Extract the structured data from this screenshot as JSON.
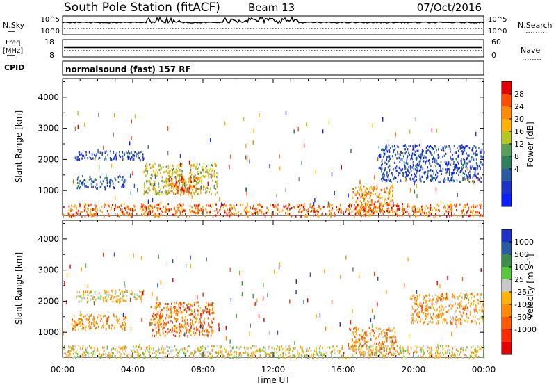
{
  "header": {
    "title": "South Pole Station (fitACF)",
    "beam": "Beam 13",
    "date": "07/Oct/2016"
  },
  "strips": {
    "nsky_label": "N.Sky",
    "nsearch_label": "N.Search",
    "freq_label_1": "Freq.",
    "freq_label_2": "[MHz]",
    "nave_label": "Nave",
    "cpid_label": "CPID",
    "cpid_value": "normalsound (fast) 157 RF",
    "noise_ticks_left": [
      "10^5",
      "10^0"
    ],
    "noise_ticks_right": [
      "10^5",
      "10^0"
    ],
    "freq_ticks": [
      "18",
      "8"
    ],
    "nave_ticks": [
      "60",
      "0"
    ]
  },
  "colorbars": {
    "power": {
      "label": "Power [dB]",
      "ticks": [
        "28",
        "24",
        "20",
        "16",
        "12",
        "8",
        "4"
      ],
      "colors": [
        "#e60000",
        "#ff4d00",
        "#ff8c00",
        "#ffb300",
        "#b4c820",
        "#5aa05a",
        "#2f7d5a",
        "#2a5aa0",
        "#1e32c8",
        "#0a1eff"
      ]
    },
    "velocity": {
      "label": "Velocity [m s⁻¹]",
      "ticks": [
        "1000",
        "500",
        "100",
        "25",
        "-25",
        "-100",
        "-500",
        "-1000"
      ],
      "colors": [
        "#1e32c8",
        "#2a5aa0",
        "#3c8c4a",
        "#5ac83c",
        "#c8c8c8",
        "#ffb400",
        "#ff8c00",
        "#ff5a00",
        "#ff2800",
        "#e60000"
      ]
    }
  },
  "chart_data": [
    {
      "type": "heatmap",
      "title": "Power",
      "xlabel": "",
      "ylabel": "Slant Range [km]",
      "x_ticks": [
        "00:00",
        "04:00",
        "08:00",
        "12:00",
        "16:00",
        "20:00",
        "00:00"
      ],
      "xlim": [
        0,
        24
      ],
      "ylim": [
        200,
        4600
      ],
      "y_ticks": [
        1000,
        2000,
        3000,
        4000
      ],
      "colorbar": {
        "label": "Power [dB]",
        "range": [
          0,
          32
        ]
      },
      "regions": [
        {
          "t": [
            0.7,
            4.6
          ],
          "r": [
            2000,
            2300
          ],
          "value": 6
        },
        {
          "t": [
            0.8,
            3.6
          ],
          "r": [
            1100,
            1500
          ],
          "value": 8
        },
        {
          "t": [
            4.6,
            8.8
          ],
          "r": [
            900,
            1900
          ],
          "value": 18
        },
        {
          "t": [
            6.0,
            7.7
          ],
          "r": [
            900,
            1500
          ],
          "value": 26
        },
        {
          "t": [
            16.5,
            18.8
          ],
          "r": [
            300,
            1200
          ],
          "value": 24
        },
        {
          "t": [
            18.0,
            24.0
          ],
          "r": [
            1300,
            2500
          ],
          "value": 6
        },
        {
          "t": [
            0.0,
            24.0
          ],
          "r": [
            200,
            600
          ],
          "value": 26
        }
      ]
    },
    {
      "type": "heatmap",
      "title": "Velocity",
      "xlabel": "Time UT",
      "ylabel": "Slant Range [km]",
      "x_ticks": [
        "00:00",
        "04:00",
        "08:00",
        "12:00",
        "16:00",
        "20:00",
        "00:00"
      ],
      "xlim": [
        0,
        24
      ],
      "ylim": [
        200,
        4600
      ],
      "y_ticks": [
        1000,
        2000,
        3000,
        4000
      ],
      "colorbar": {
        "label": "Velocity [m s⁻¹]",
        "range": [
          -1000,
          1000
        ]
      },
      "regions": [
        {
          "t": [
            0.7,
            4.6
          ],
          "r": [
            2000,
            2400
          ],
          "value": 0
        },
        {
          "t": [
            0.5,
            3.6
          ],
          "r": [
            1100,
            1600
          ],
          "value": -300
        },
        {
          "t": [
            5.0,
            8.6
          ],
          "r": [
            900,
            2000
          ],
          "value": -400
        },
        {
          "t": [
            16.3,
            19.0
          ],
          "r": [
            300,
            1200
          ],
          "value": -300
        },
        {
          "t": [
            19.8,
            24.0
          ],
          "r": [
            1300,
            2300
          ],
          "value": -200
        },
        {
          "t": [
            0.0,
            24.0
          ],
          "r": [
            200,
            600
          ],
          "value": 0
        }
      ]
    }
  ]
}
